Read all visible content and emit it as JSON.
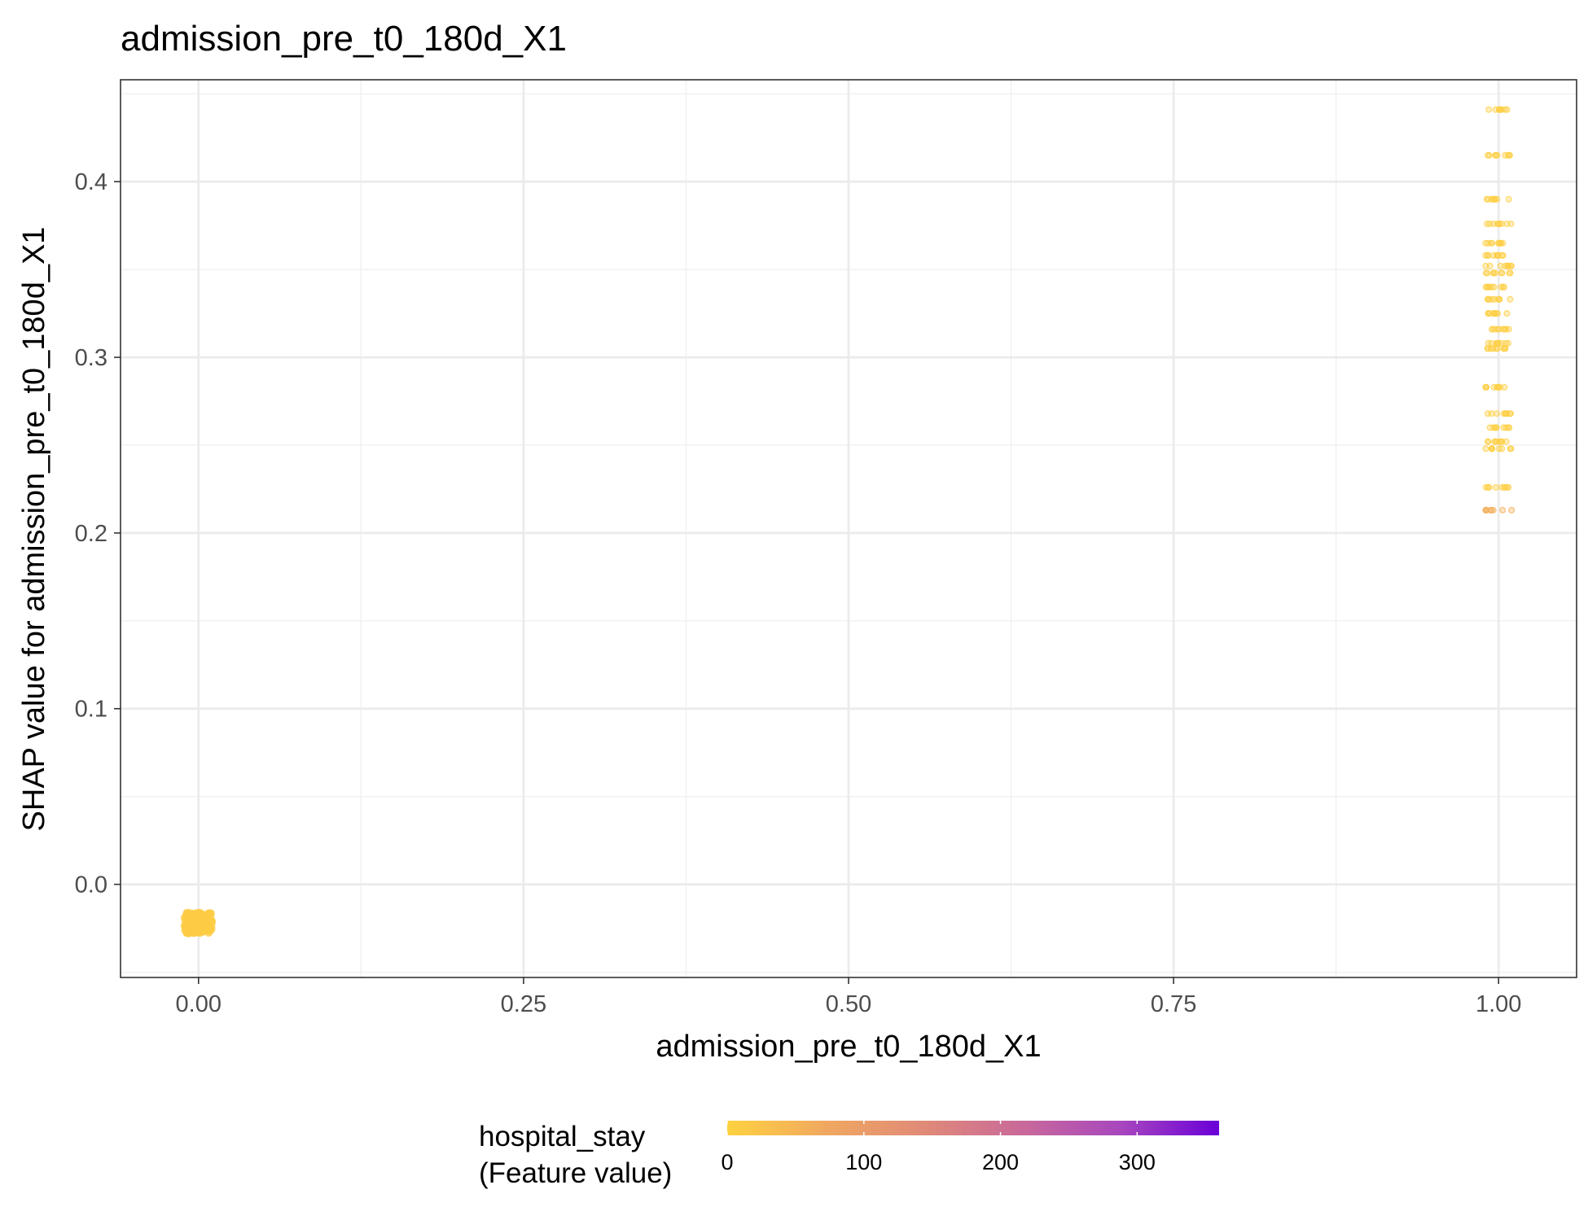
{
  "chart_data": {
    "type": "scatter",
    "title": "admission_pre_t0_180d_X1",
    "xlabel": "admission_pre_t0_180d_X1",
    "ylabel": "SHAP value for admission_pre_t0_180d_X1",
    "xlim": [
      -0.06,
      1.06
    ],
    "ylim": [
      -0.053,
      0.458
    ],
    "x_ticks": [
      0.0,
      0.25,
      0.5,
      0.75,
      1.0
    ],
    "x_tick_labels": [
      "0.00",
      "0.25",
      "0.50",
      "0.75",
      "1.00"
    ],
    "y_ticks": [
      0.0,
      0.1,
      0.2,
      0.3,
      0.4
    ],
    "y_tick_labels": [
      "0.0",
      "0.1",
      "0.2",
      "0.3",
      "0.4"
    ],
    "grid": true,
    "legend": {
      "title_line1": "hospital_stay",
      "title_line2": "(Feature value)",
      "placement": "bottom",
      "type": "colorbar",
      "range": [
        0,
        360
      ],
      "ticks": [
        0,
        100,
        200,
        300
      ],
      "tick_labels": [
        "0",
        "100",
        "200",
        "300"
      ],
      "colors": [
        "#FFD23F",
        "#F0A860",
        "#E08A78",
        "#C9699A",
        "#A847BE",
        "#6A00D8"
      ]
    },
    "point_groups": [
      {
        "x": 0.0,
        "y_min": -0.028,
        "y_max": -0.016,
        "color_value": 10,
        "dense": true
      },
      {
        "x": 1.0,
        "y": 0.441,
        "color_value": 5
      },
      {
        "x": 1.0,
        "y": 0.415,
        "color_value": 5
      },
      {
        "x": 1.0,
        "y": 0.39,
        "color_value": 5
      },
      {
        "x": 1.0,
        "y": 0.376,
        "color_value": 5
      },
      {
        "x": 1.0,
        "y": 0.365,
        "color_value": 5
      },
      {
        "x": 1.0,
        "y": 0.358,
        "color_value": 5
      },
      {
        "x": 1.0,
        "y": 0.352,
        "color_value": 5
      },
      {
        "x": 1.0,
        "y": 0.348,
        "color_value": 5
      },
      {
        "x": 1.0,
        "y": 0.34,
        "color_value": 5
      },
      {
        "x": 1.0,
        "y": 0.333,
        "color_value": 5
      },
      {
        "x": 1.0,
        "y": 0.325,
        "color_value": 5
      },
      {
        "x": 1.0,
        "y": 0.316,
        "color_value": 5
      },
      {
        "x": 1.0,
        "y": 0.308,
        "color_value": 5
      },
      {
        "x": 1.0,
        "y": 0.305,
        "color_value": 5
      },
      {
        "x": 1.0,
        "y": 0.283,
        "color_value": 5
      },
      {
        "x": 1.0,
        "y": 0.268,
        "color_value": 5
      },
      {
        "x": 1.0,
        "y": 0.26,
        "color_value": 5
      },
      {
        "x": 1.0,
        "y": 0.252,
        "color_value": 5
      },
      {
        "x": 1.0,
        "y": 0.248,
        "color_value": 5
      },
      {
        "x": 1.0,
        "y": 0.226,
        "color_value": 5
      },
      {
        "x": 1.0,
        "y": 0.213,
        "color_value": 60
      }
    ]
  }
}
